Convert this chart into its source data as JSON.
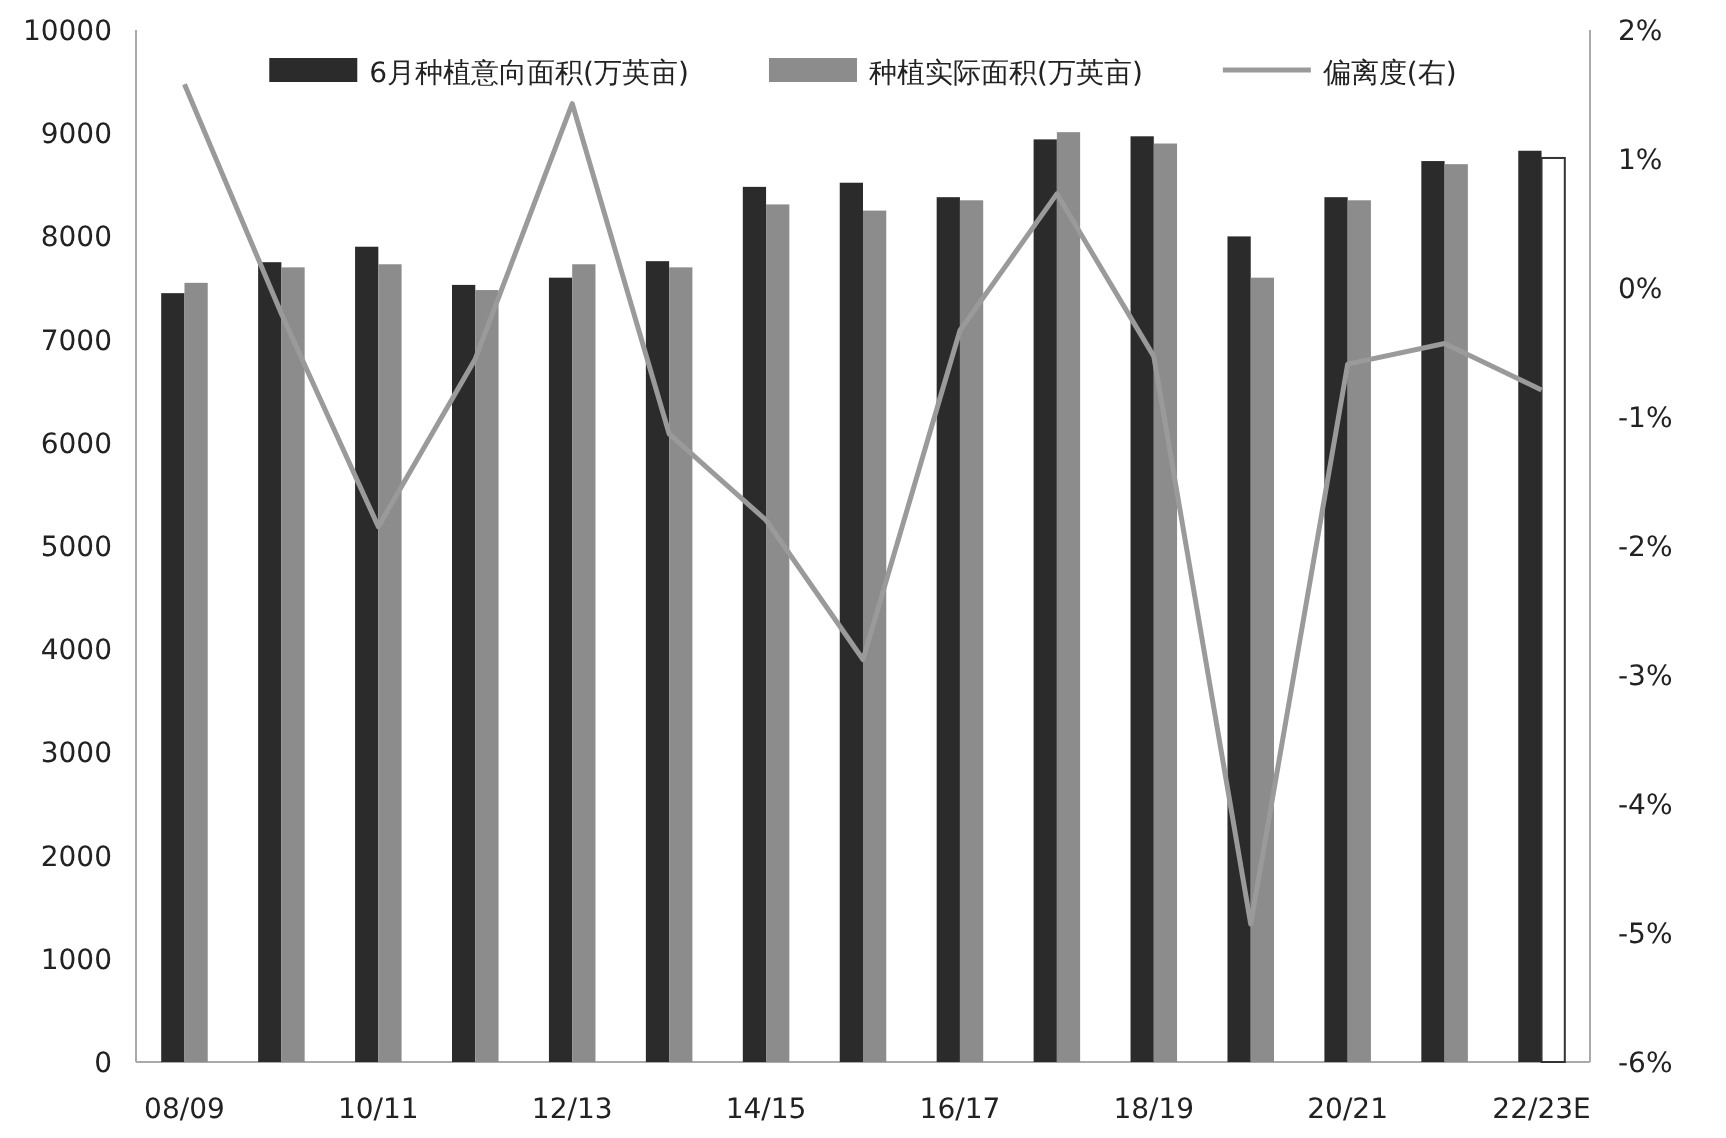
{
  "chart_data": {
    "type": "bar",
    "categories": [
      "08/09",
      null,
      "10/11",
      null,
      "12/13",
      null,
      "14/15",
      null,
      "16/17",
      null,
      "18/19",
      null,
      "20/21",
      null,
      "22/23E"
    ],
    "series": [
      {
        "name": "6月种植意向面积(万英亩)",
        "color": "#2b2b2b",
        "values": [
          7450,
          7750,
          7900,
          7530,
          7600,
          7760,
          8480,
          8520,
          8380,
          8940,
          8970,
          8000,
          8380,
          8730,
          8830
        ]
      },
      {
        "name": "种植实际面积(万英亩)",
        "color": "#8c8c8c",
        "colors": [
          "#8c8c8c",
          "#8c8c8c",
          "#8c8c8c",
          "#8c8c8c",
          "#8c8c8c",
          "#8c8c8c",
          "#8c8c8c",
          "#8c8c8c",
          "#8c8c8c",
          "#8c8c8c",
          "#8c8c8c",
          "#8c8c8c",
          "#8c8c8c",
          "#8c8c8c",
          "#ffffff"
        ],
        "values": [
          7550,
          7700,
          7730,
          7480,
          7730,
          7700,
          8310,
          8250,
          8350,
          9010,
          8900,
          7600,
          8350,
          8700,
          8760
        ]
      },
      {
        "name": "偏离度(右)",
        "type": "line",
        "axis": "y2",
        "color": "#9a9a9a",
        "values": [
          1.58,
          -0.2,
          -1.85,
          -0.55,
          1.43,
          -1.13,
          -1.8,
          -2.88,
          -0.33,
          0.73,
          -0.53,
          -4.93,
          -0.59,
          -0.43,
          -0.79
        ]
      }
    ],
    "ylim": [
      0,
      10000
    ],
    "yticks": [
      0,
      1000,
      2000,
      3000,
      4000,
      5000,
      6000,
      7000,
      8000,
      9000,
      10000
    ],
    "y2lim": [
      -6,
      2
    ],
    "y2ticks": [
      {
        "value": -6,
        "label": "-6%"
      },
      {
        "value": -5,
        "label": "-5%"
      },
      {
        "value": -4,
        "label": "-4%"
      },
      {
        "value": -3,
        "label": "-3%"
      },
      {
        "value": -2,
        "label": "-2%"
      },
      {
        "value": -1,
        "label": "-1%"
      },
      {
        "value": 0,
        "label": "0%"
      },
      {
        "value": 1,
        "label": "1%"
      },
      {
        "value": 2,
        "label": "2%"
      }
    ],
    "legend": "top",
    "grid": false
  }
}
